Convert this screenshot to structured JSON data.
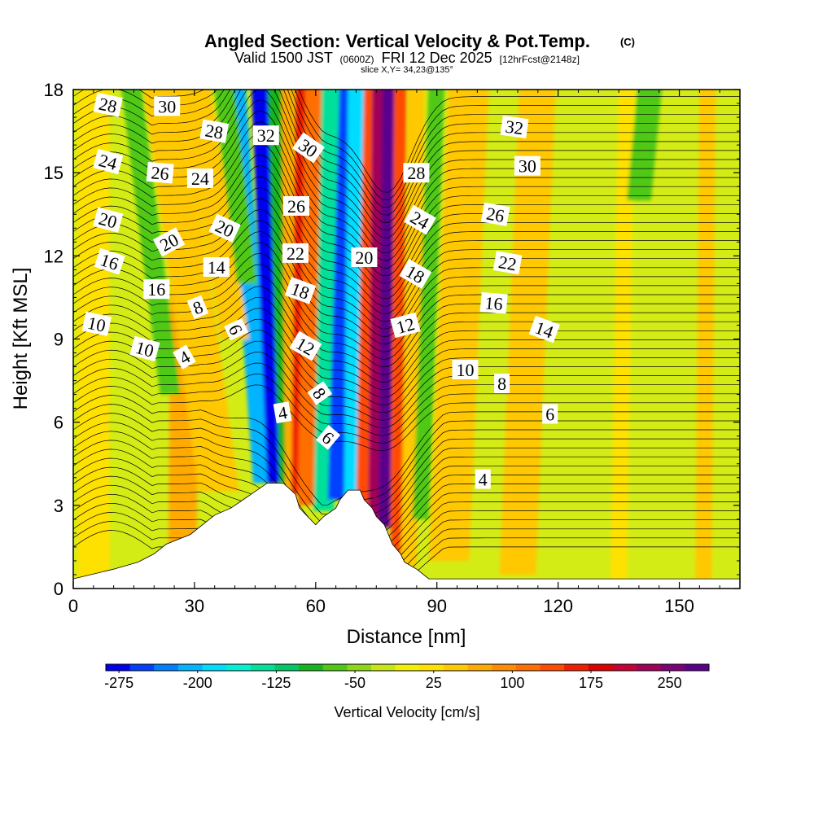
{
  "chart_data": {
    "type": "heatmap",
    "title": "Angled Section: Vertical Velocity & Pot.Temp.",
    "title_mark": "(C)",
    "subtitle": {
      "prefix": "Valid 1500 JST",
      "utc": "(0600Z)",
      "date": "FRI 12 Dec 2025",
      "forecast": "[12hrFcst@2148z]"
    },
    "slice_label": "slice X,Y= 34,23@135°",
    "xlabel": "Distance [nm]",
    "ylabel": "Height [Kft MSL]",
    "xlim": [
      0,
      165
    ],
    "ylim": [
      0,
      18
    ],
    "xticks": [
      0,
      30,
      60,
      90,
      120,
      150
    ],
    "yticks": [
      0,
      3,
      6,
      9,
      12,
      15,
      18
    ],
    "colorbar": {
      "label": "Vertical Velocity [cm/s]",
      "ticks": [
        -275,
        -200,
        -125,
        -50,
        25,
        100,
        175,
        250
      ],
      "range": [
        -287.5,
        287.5
      ],
      "colors": [
        "#0000f0",
        "#0040ff",
        "#0080ff",
        "#00b4ff",
        "#00dcff",
        "#00f0d2",
        "#00e09a",
        "#00c864",
        "#18b41e",
        "#50c814",
        "#8cd614",
        "#c8e614",
        "#f0f000",
        "#ffe100",
        "#ffc800",
        "#ffaa00",
        "#ff8c00",
        "#ff6e00",
        "#ff4b00",
        "#f01e00",
        "#dc0000",
        "#c80032",
        "#a0005a",
        "#7d0078",
        "#5a008c"
      ]
    },
    "terrain_kft": [
      [
        0,
        0.35
      ],
      [
        10,
        0.7
      ],
      [
        16,
        0.95
      ],
      [
        20,
        1.25
      ],
      [
        23,
        1.6
      ],
      [
        29,
        1.95
      ],
      [
        32,
        2.3
      ],
      [
        35,
        2.65
      ],
      [
        39,
        2.9
      ],
      [
        42,
        3.2
      ],
      [
        45,
        3.5
      ],
      [
        48,
        3.8
      ],
      [
        52,
        3.8
      ],
      [
        55,
        3.4
      ],
      [
        56,
        2.9
      ],
      [
        58,
        2.6
      ],
      [
        60,
        2.3
      ],
      [
        62,
        2.6
      ],
      [
        65,
        2.9
      ],
      [
        66,
        3.2
      ],
      [
        68,
        3.55
      ],
      [
        71,
        3.55
      ],
      [
        72,
        3.2
      ],
      [
        74,
        2.9
      ],
      [
        75,
        2.6
      ],
      [
        77,
        2.3
      ],
      [
        78,
        1.95
      ],
      [
        79,
        1.6
      ],
      [
        81,
        1.25
      ],
      [
        82,
        0.95
      ],
      [
        85,
        0.7
      ],
      [
        88,
        0.35
      ],
      [
        165,
        0.35
      ]
    ],
    "velocity_bands": [
      {
        "x_bottom": 47,
        "x_top": 40,
        "y_bottom": 3.8,
        "width": 5,
        "value": -210
      },
      {
        "x_bottom": 50,
        "x_top": 46,
        "y_bottom": 3.8,
        "width": 4,
        "value": -285
      },
      {
        "x_bottom": 53,
        "x_top": 50,
        "y_bottom": 3.8,
        "width": 4,
        "value": -90
      },
      {
        "x_bottom": 54,
        "x_top": 53,
        "y_bottom": 3.6,
        "width": 3,
        "value": 60
      },
      {
        "x_bottom": 56,
        "x_top": 57,
        "y_bottom": 3.4,
        "width": 4,
        "value": 170
      },
      {
        "x_bottom": 58,
        "x_top": 60,
        "y_bottom": 3.0,
        "width": 5,
        "value": 110
      },
      {
        "x_bottom": 62,
        "x_top": 64,
        "y_bottom": 2.8,
        "width": 5,
        "value": -140
      },
      {
        "x_bottom": 65,
        "x_top": 68,
        "y_bottom": 3.2,
        "width": 4,
        "value": -260
      },
      {
        "x_bottom": 69,
        "x_top": 70,
        "y_bottom": 3.4,
        "width": 4,
        "value": -180
      },
      {
        "x_bottom": 72,
        "x_top": 74,
        "y_bottom": 2.9,
        "width": 4,
        "value": 140
      },
      {
        "x_bottom": 75,
        "x_top": 76,
        "y_bottom": 2.5,
        "width": 4,
        "value": 230
      },
      {
        "x_bottom": 77,
        "x_top": 78,
        "y_bottom": 2.2,
        "width": 3,
        "value": 270
      },
      {
        "x_bottom": 80,
        "x_top": 81,
        "y_bottom": 1.2,
        "width": 3,
        "value": 130
      },
      {
        "x_bottom": 83,
        "x_top": 85,
        "y_bottom": 0.8,
        "width": 4,
        "value": 40
      },
      {
        "x_bottom": 86,
        "x_top": 90,
        "y_bottom": 2.5,
        "width": 4,
        "value": -60
      },
      {
        "x_bottom": 93,
        "x_top": 98,
        "y_bottom": 1.0,
        "width": 10,
        "value": 55
      },
      {
        "x_bottom": 27,
        "x_top": 28,
        "y_bottom": 0.5,
        "width": 7,
        "value": 70
      },
      {
        "x_bottom": 36,
        "x_top": 22,
        "y_bottom": 3.5,
        "width": 10,
        "value": 40
      },
      {
        "x_bottom": 24,
        "x_top": 14,
        "y_bottom": 7.0,
        "width": 5,
        "value": -80
      },
      {
        "x_bottom": 40,
        "x_top": 30,
        "y_bottom": 9.0,
        "width": 7,
        "value": 55
      },
      {
        "x_bottom": 43,
        "x_top": 37,
        "y_bottom": 11.0,
        "width": 5,
        "value": -70
      },
      {
        "x_bottom": 110,
        "x_top": 115,
        "y_bottom": 0.5,
        "width": 9,
        "value": 35
      },
      {
        "x_bottom": 135,
        "x_top": 137,
        "y_bottom": 0.3,
        "width": 4,
        "value": 30
      },
      {
        "x_bottom": 156,
        "x_top": 157,
        "y_bottom": 0.3,
        "width": 4,
        "value": 45
      },
      {
        "x_bottom": 140,
        "x_top": 143,
        "y_bottom": 14.0,
        "width": 6,
        "value": -60
      },
      {
        "x_bottom": 5,
        "x_top": 5,
        "y_bottom": 0.3,
        "width": 8,
        "value": 25
      }
    ],
    "contour_labels": [
      {
        "text": "28",
        "x": 8.6,
        "y": 17.45,
        "rot": 12
      },
      {
        "text": "30",
        "x": 23.2,
        "y": 17.4,
        "rot": 0
      },
      {
        "text": "28",
        "x": 34.9,
        "y": 16.5,
        "rot": 10
      },
      {
        "text": "32",
        "x": 47.7,
        "y": 16.35,
        "rot": 0
      },
      {
        "text": "30",
        "x": 58.2,
        "y": 15.9,
        "rot": 35
      },
      {
        "text": "24",
        "x": 8.6,
        "y": 15.4,
        "rot": 15
      },
      {
        "text": "26",
        "x": 21.5,
        "y": 15.0,
        "rot": 5
      },
      {
        "text": "24",
        "x": 31.4,
        "y": 14.8,
        "rot": 0
      },
      {
        "text": "26",
        "x": 55.2,
        "y": 13.8,
        "rot": 0
      },
      {
        "text": "20",
        "x": 8.6,
        "y": 13.3,
        "rot": 15
      },
      {
        "text": "20",
        "x": 37.5,
        "y": 13.0,
        "rot": 25
      },
      {
        "text": "20",
        "x": 23.7,
        "y": 12.5,
        "rot": -28
      },
      {
        "text": "16",
        "x": 9.0,
        "y": 11.8,
        "rot": 18
      },
      {
        "text": "22",
        "x": 55.0,
        "y": 12.1,
        "rot": 0
      },
      {
        "text": "14",
        "x": 35.4,
        "y": 11.6,
        "rot": 0
      },
      {
        "text": "16",
        "x": 20.6,
        "y": 10.8,
        "rot": 0
      },
      {
        "text": "18",
        "x": 56.2,
        "y": 10.75,
        "rot": 20
      },
      {
        "text": "8",
        "x": 30.8,
        "y": 10.15,
        "rot": -22
      },
      {
        "text": "10",
        "x": 5.8,
        "y": 9.55,
        "rot": 12
      },
      {
        "text": "6",
        "x": 40.3,
        "y": 9.35,
        "rot": 65
      },
      {
        "text": "10",
        "x": 17.7,
        "y": 8.65,
        "rot": 15
      },
      {
        "text": "12",
        "x": 57.5,
        "y": 8.75,
        "rot": 30
      },
      {
        "text": "4",
        "x": 27.5,
        "y": 8.35,
        "rot": -30
      },
      {
        "text": "8",
        "x": 61.0,
        "y": 7.05,
        "rot": 55
      },
      {
        "text": "4",
        "x": 51.8,
        "y": 6.35,
        "rot": -10
      },
      {
        "text": "6",
        "x": 63.1,
        "y": 5.45,
        "rot": 40
      },
      {
        "text": "32",
        "x": 109.2,
        "y": 16.65,
        "rot": 8
      },
      {
        "text": "30",
        "x": 112.4,
        "y": 15.25,
        "rot": 0
      },
      {
        "text": "28",
        "x": 84.9,
        "y": 15.0,
        "rot": 0
      },
      {
        "text": "26",
        "x": 104.5,
        "y": 13.5,
        "rot": 10
      },
      {
        "text": "24",
        "x": 85.8,
        "y": 13.3,
        "rot": 30
      },
      {
        "text": "22",
        "x": 107.5,
        "y": 11.75,
        "rot": 10
      },
      {
        "text": "20",
        "x": 72.0,
        "y": 11.95,
        "rot": 0
      },
      {
        "text": "18",
        "x": 84.7,
        "y": 11.35,
        "rot": 30
      },
      {
        "text": "16",
        "x": 104.1,
        "y": 10.3,
        "rot": 5
      },
      {
        "text": "14",
        "x": 116.6,
        "y": 9.35,
        "rot": 20
      },
      {
        "text": "12",
        "x": 82.2,
        "y": 9.5,
        "rot": -15
      },
      {
        "text": "10",
        "x": 97.0,
        "y": 7.9,
        "rot": 0
      },
      {
        "text": "8",
        "x": 106.1,
        "y": 7.4,
        "rot": 0
      },
      {
        "text": "6",
        "x": 118.0,
        "y": 6.3,
        "rot": 0
      },
      {
        "text": "4",
        "x": 101.4,
        "y": 3.95,
        "rot": 0
      }
    ]
  }
}
